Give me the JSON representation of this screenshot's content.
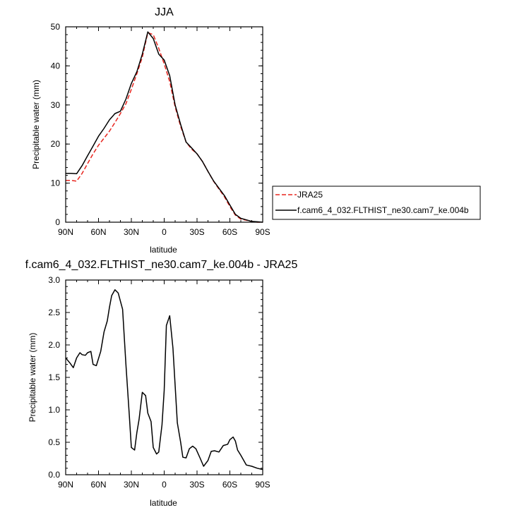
{
  "chart_data": [
    {
      "type": "line",
      "title": "JJA",
      "xlabel": "latitude",
      "ylabel": "Precipitable water (mm)",
      "xlim": [
        90,
        -90
      ],
      "ylim": [
        0,
        50
      ],
      "x_ticks": [
        90,
        60,
        30,
        0,
        -30,
        -60,
        -90
      ],
      "x_tick_labels": [
        "90N",
        "60N",
        "30N",
        "0",
        "30S",
        "60S",
        "90S"
      ],
      "y_ticks": [
        0,
        10,
        20,
        30,
        40,
        50
      ],
      "y_tick_labels": [
        "0",
        "10",
        "20",
        "30",
        "40",
        "50"
      ],
      "grid": false,
      "legend_position": "right",
      "series": [
        {
          "name": "JRA25",
          "color": "#e8261f",
          "style": "dashed",
          "x": [
            90,
            85,
            80,
            75,
            70,
            65,
            60,
            55,
            50,
            45,
            40,
            35,
            30,
            25,
            20,
            15,
            10,
            5,
            0,
            -5,
            -10,
            -15,
            -20,
            -25,
            -30,
            -35,
            -40,
            -45,
            -50,
            -55,
            -60,
            -65,
            -70,
            -75,
            -80,
            -85,
            -90
          ],
          "y": [
            10.7,
            10.7,
            10.5,
            12.5,
            15.0,
            17.5,
            19.7,
            21.5,
            23.3,
            25.5,
            27.8,
            30.3,
            34.0,
            38.0,
            42.2,
            48.5,
            48.0,
            44.5,
            40.5,
            36.0,
            29.5,
            24.5,
            20.5,
            18.7,
            17.5,
            15.5,
            13.0,
            10.5,
            8.5,
            6.5,
            4.0,
            1.8,
            0.8,
            0.5,
            0.2,
            0.0,
            0.0
          ]
        },
        {
          "name": "f.cam6_4_032.FLTHIST_ne30.cam7_ke.004b",
          "color": "#000000",
          "style": "solid",
          "x": [
            90,
            85,
            80,
            75,
            70,
            65,
            60,
            55,
            50,
            45,
            40,
            35,
            30,
            25,
            20,
            15,
            10,
            5,
            0,
            -5,
            -10,
            -15,
            -20,
            -25,
            -30,
            -35,
            -40,
            -45,
            -50,
            -55,
            -60,
            -65,
            -70,
            -75,
            -80,
            -85,
            -90
          ],
          "y": [
            12.5,
            12.5,
            12.4,
            14.5,
            17.0,
            19.5,
            22.0,
            24.0,
            26.2,
            27.8,
            28.4,
            31.5,
            35.5,
            38.5,
            43.0,
            48.7,
            47.0,
            43.0,
            41.5,
            37.5,
            30.0,
            25.0,
            20.5,
            19.0,
            17.5,
            15.5,
            13.0,
            10.6,
            8.7,
            6.8,
            4.4,
            2.0,
            1.0,
            0.6,
            0.2,
            0.1,
            0.0
          ]
        }
      ]
    },
    {
      "type": "line",
      "title": "f.cam6_4_032.FLTHIST_ne30.cam7_ke.004b - JRA25",
      "xlabel": "latitude",
      "ylabel": "Precipitable water (mm)",
      "xlim": [
        90,
        -90
      ],
      "ylim": [
        0,
        3
      ],
      "x_ticks": [
        90,
        60,
        30,
        0,
        -30,
        -60,
        -90
      ],
      "x_tick_labels": [
        "90N",
        "60N",
        "30N",
        "0",
        "30S",
        "60S",
        "90S"
      ],
      "y_ticks": [
        0,
        0.5,
        1,
        1.5,
        2,
        2.5,
        3
      ],
      "y_tick_labels": [
        "0.0",
        "0.5",
        "1.0",
        "1.5",
        "2.0",
        "2.5",
        "3.0"
      ],
      "grid": false,
      "series": [
        {
          "color": "#000000",
          "style": "solid",
          "x": [
            90,
            86,
            83,
            80,
            77,
            75,
            72,
            70,
            67,
            65,
            62,
            58,
            55,
            52,
            50,
            48,
            45,
            42,
            38,
            35,
            32,
            30,
            27,
            25,
            23,
            20,
            17,
            15,
            12,
            10,
            7,
            5,
            2,
            0,
            -2,
            -5,
            -8,
            -12,
            -15,
            -17,
            -20,
            -23,
            -26,
            -29,
            -33,
            -36,
            -40,
            -43,
            -46,
            -50,
            -54,
            -58,
            -60,
            -63,
            -65,
            -67,
            -70,
            -75,
            -80,
            -85,
            -90
          ],
          "y": [
            1.8,
            1.72,
            1.65,
            1.8,
            1.88,
            1.85,
            1.84,
            1.88,
            1.9,
            1.7,
            1.68,
            1.9,
            2.2,
            2.37,
            2.58,
            2.76,
            2.85,
            2.8,
            2.55,
            1.7,
            0.95,
            0.42,
            0.38,
            0.65,
            0.85,
            1.27,
            1.22,
            0.95,
            0.82,
            0.42,
            0.32,
            0.35,
            0.77,
            1.3,
            2.3,
            2.45,
            1.95,
            0.8,
            0.5,
            0.27,
            0.26,
            0.4,
            0.44,
            0.4,
            0.25,
            0.13,
            0.22,
            0.36,
            0.37,
            0.35,
            0.45,
            0.47,
            0.54,
            0.58,
            0.52,
            0.38,
            0.3,
            0.15,
            0.13,
            0.1,
            0.08
          ]
        }
      ]
    }
  ]
}
